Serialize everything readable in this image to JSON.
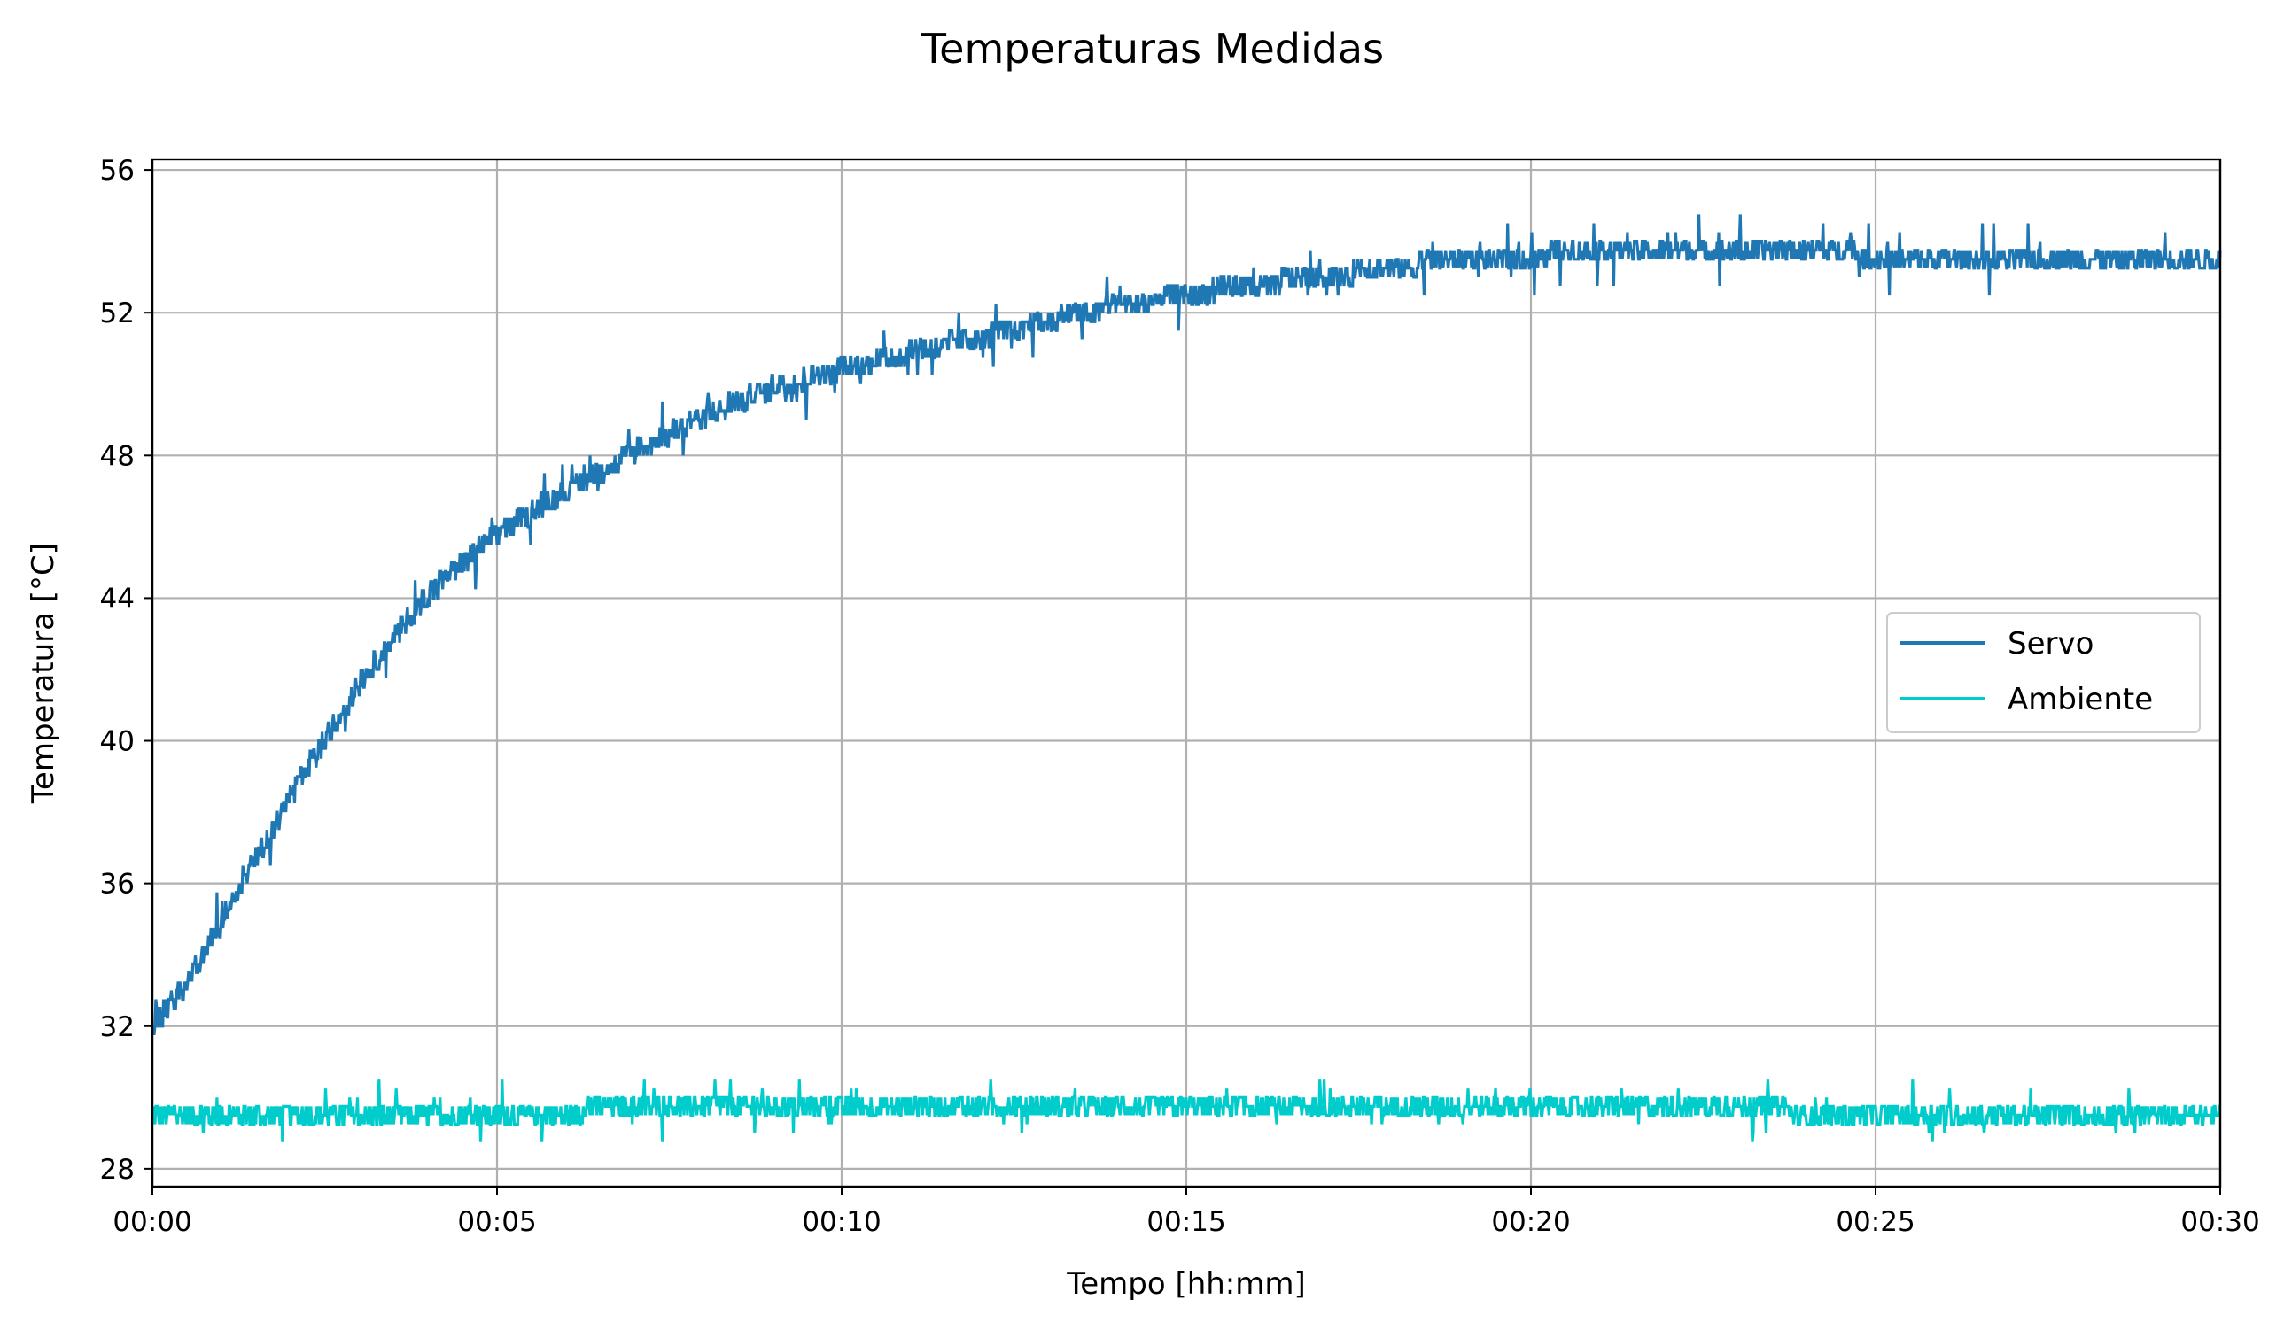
{
  "chart_data": {
    "type": "line",
    "title": "Temperaturas Medidas",
    "xlabel": "Tempo [hh:mm]",
    "ylabel": "Temperatura [°C]",
    "x_unit": "minutes",
    "xlim": [
      0,
      30
    ],
    "ylim": [
      27.5,
      56.3
    ],
    "x_ticks": [
      0,
      5,
      10,
      15,
      20,
      25,
      30
    ],
    "x_tick_labels": [
      "00:00",
      "00:05",
      "00:10",
      "00:15",
      "00:20",
      "00:25",
      "00:30"
    ],
    "y_ticks": [
      28,
      32,
      36,
      40,
      44,
      48,
      52,
      56
    ],
    "y_tick_labels": [
      "28",
      "32",
      "36",
      "40",
      "44",
      "48",
      "52",
      "56"
    ],
    "grid": true,
    "legend_position": "center-right",
    "series": [
      {
        "name": "Servo",
        "color": "#1f77b4",
        "noise_amplitude": 0.5,
        "x": [
          0,
          0.5,
          1,
          1.5,
          2,
          2.5,
          3,
          3.5,
          4,
          4.5,
          5,
          6,
          7,
          8,
          9,
          10,
          11,
          12,
          13,
          14,
          15,
          16,
          17,
          18,
          19,
          20,
          21,
          22,
          23,
          24,
          25,
          26,
          27,
          28,
          29,
          30
        ],
        "values": [
          32.0,
          33.2,
          34.9,
          36.7,
          38.4,
          40.0,
          41.6,
          42.9,
          44.1,
          45.0,
          45.8,
          47.0,
          48.1,
          49.1,
          49.9,
          50.4,
          50.9,
          51.3,
          51.8,
          52.2,
          52.5,
          52.8,
          53.0,
          53.3,
          53.5,
          53.6,
          53.7,
          53.8,
          53.7,
          53.7,
          53.6,
          53.6,
          53.5,
          53.5,
          53.5,
          53.5
        ]
      },
      {
        "name": "Ambiente",
        "color": "#00cccc",
        "noise_amplitude": 0.35,
        "x": [
          0,
          5,
          10,
          15,
          20,
          25,
          30
        ],
        "values": [
          29.6,
          29.6,
          29.7,
          29.7,
          29.7,
          29.6,
          29.6
        ]
      }
    ]
  }
}
